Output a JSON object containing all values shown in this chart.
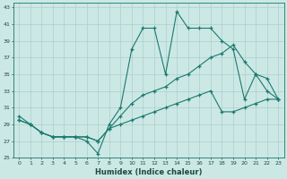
{
  "xlabel": "Humidex (Indice chaleur)",
  "background_color": "#cce8e5",
  "grid_color": "#aacfcc",
  "line_color": "#1a7a6e",
  "xlim": [
    -0.5,
    23.5
  ],
  "ylim": [
    25,
    43.5
  ],
  "yticks": [
    25,
    27,
    29,
    31,
    33,
    35,
    37,
    39,
    41,
    43
  ],
  "xticks": [
    0,
    1,
    2,
    3,
    4,
    5,
    6,
    7,
    8,
    9,
    10,
    11,
    12,
    13,
    14,
    15,
    16,
    17,
    18,
    19,
    20,
    21,
    22,
    23
  ],
  "series1_x": [
    0,
    1,
    2,
    3,
    4,
    5,
    6,
    7,
    8,
    9,
    10,
    11,
    12,
    13,
    14,
    15,
    16,
    17,
    18,
    19,
    20,
    21,
    22,
    23
  ],
  "series1_y": [
    30,
    29,
    28,
    27.5,
    27.5,
    27.5,
    27,
    25.5,
    29,
    31,
    38,
    40.5,
    40.5,
    35,
    42.5,
    40.5,
    40.5,
    40.5,
    39,
    38,
    32,
    35,
    34.5,
    32
  ],
  "series2_x": [
    0,
    1,
    2,
    3,
    4,
    5,
    6,
    7,
    8,
    9,
    10,
    11,
    12,
    13,
    14,
    15,
    16,
    17,
    18,
    19,
    20,
    21,
    22,
    23
  ],
  "series2_y": [
    29.5,
    29,
    28,
    27.5,
    27.5,
    27.5,
    27.5,
    27,
    28.5,
    30,
    31.5,
    32.5,
    33,
    33.5,
    34.5,
    35,
    36,
    37,
    37.5,
    38.5,
    36.5,
    35,
    33,
    32
  ],
  "series3_x": [
    0,
    1,
    2,
    3,
    4,
    5,
    6,
    7,
    8,
    9,
    10,
    11,
    12,
    13,
    14,
    15,
    16,
    17,
    18,
    19,
    20,
    21,
    22,
    23
  ],
  "series3_y": [
    29.5,
    29,
    28,
    27.5,
    27.5,
    27.5,
    27.5,
    27,
    28.5,
    29,
    29.5,
    30,
    30.5,
    31,
    31.5,
    32,
    32.5,
    33,
    30.5,
    30.5,
    31,
    31.5,
    32,
    32
  ]
}
